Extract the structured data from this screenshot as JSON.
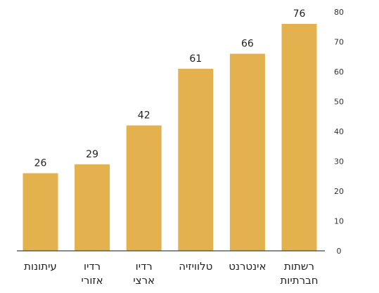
{
  "chart_data": {
    "type": "bar",
    "categories": [
      [
        "עיתונות"
      ],
      [
        "רדיו",
        "אזורי"
      ],
      [
        "רדיו",
        "ארצי"
      ],
      [
        "טלוויזיה"
      ],
      [
        "אינטרנט"
      ],
      [
        "רשתות",
        "חברתיות"
      ]
    ],
    "values": [
      26,
      29,
      42,
      61,
      66,
      76
    ],
    "data_labels": [
      "26",
      "29",
      "42",
      "61",
      "66",
      "76"
    ],
    "ylim": [
      0,
      80
    ],
    "yticks": [
      0,
      10,
      20,
      30,
      40,
      50,
      60,
      70,
      80
    ],
    "ytick_labels": [
      "0",
      "10",
      "20",
      "30",
      "40",
      "50",
      "60",
      "70",
      "80"
    ],
    "y_axis_side": "right",
    "grid": false,
    "title": "",
    "xlabel": "",
    "ylabel": "",
    "bar_color": "#E3B24E",
    "axis_color": "#444444"
  }
}
